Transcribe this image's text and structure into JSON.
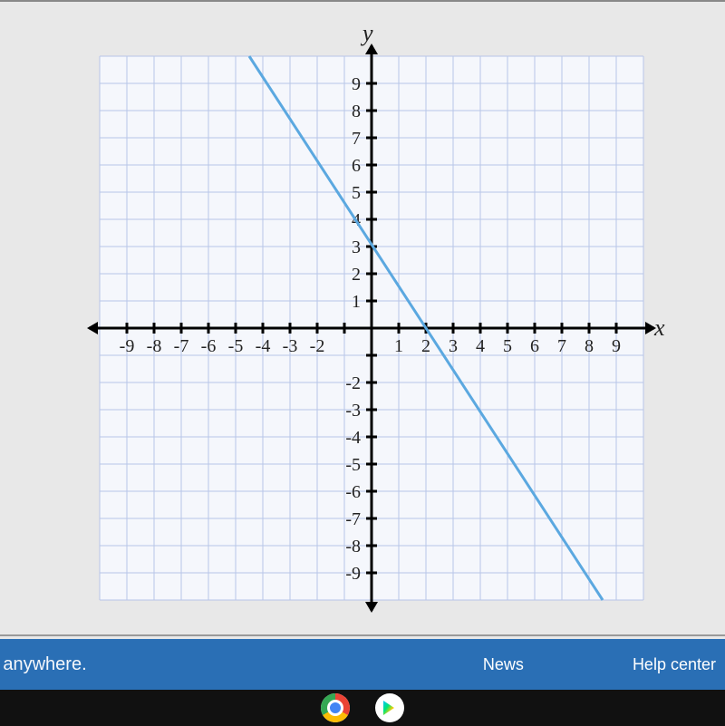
{
  "chart": {
    "type": "line",
    "background_color": "#f5f7fc",
    "grid_color": "#b8c5e8",
    "axis_color": "#000000",
    "line_color": "#5ba8e0",
    "line_width": 3,
    "xlim": [
      -10,
      10
    ],
    "ylim": [
      -10,
      10
    ],
    "xticks": [
      -9,
      -8,
      -7,
      -6,
      -5,
      -4,
      -3,
      -2,
      1,
      2,
      3,
      4,
      5,
      6,
      7,
      8,
      9
    ],
    "yticks": [
      9,
      8,
      7,
      6,
      5,
      4,
      3,
      2,
      1,
      -2,
      -3,
      -4,
      -5,
      -6,
      -7,
      -8,
      -9
    ],
    "x_label": "x",
    "y_label": "y",
    "tick_fontsize": 20,
    "label_fontsize": 26,
    "line_points": [
      {
        "x": -4.5,
        "y": 10
      },
      {
        "x": 8.5,
        "y": -10
      }
    ],
    "slope": -1.538,
    "y_intercept": 3
  },
  "bottom_bar": {
    "background_color": "#2a6fb5",
    "text_color": "#ffffff",
    "slogan": "ne, anywhere.",
    "news_label": "News",
    "help_label": "Help center"
  },
  "taskbar": {
    "background_color": "#111111",
    "icons": [
      "chrome-icon",
      "play-store-icon"
    ]
  }
}
